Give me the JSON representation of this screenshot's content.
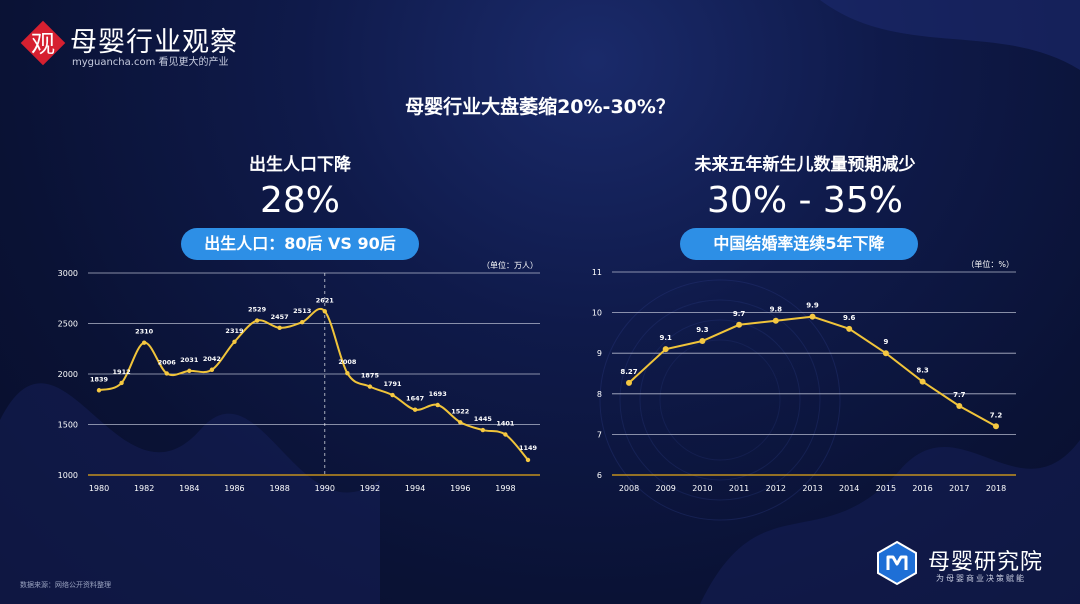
{
  "logo": {
    "mark": "观",
    "name": "母婴行业观察",
    "sub": "myguancha.com 看见更大的产业"
  },
  "headline": "母婴行业大盘萎缩20%-30%？",
  "left_panel": {
    "title": "出生人口下降",
    "big": "28%",
    "pill": "出生人口：80后 VS 90后"
  },
  "right_panel": {
    "title": "未来五年新生儿数量预期减少",
    "big": "30% - 35%",
    "pill": "中国结婚率连续5年下降"
  },
  "footer": {
    "source": "数据来源：网络公开资料整理"
  },
  "brand": {
    "name": "母婴研究院",
    "sub": "为母婴商业决策赋能"
  },
  "colors": {
    "line": "#f0c43a",
    "point": "#f5c842",
    "grid": "#d0d4e4",
    "axis": "#e6a817",
    "pill": "#2d8fe6"
  },
  "chart_data": [
    {
      "type": "line",
      "unit_label": "（单位：万人）",
      "x": [
        1980,
        1981,
        1982,
        1983,
        1984,
        1985,
        1986,
        1987,
        1988,
        1989,
        1990,
        1991,
        1992,
        1993,
        1994,
        1995,
        1996,
        1997,
        1998,
        1999
      ],
      "values": [
        1839,
        1912,
        2310,
        2006,
        2031,
        2042,
        2319,
        2529,
        2457,
        2513,
        2621,
        2008,
        1875,
        1791,
        1647,
        1693,
        1522,
        1445,
        1401,
        1149
      ],
      "point_labels": [
        "1839",
        "1912",
        "2310",
        "2006",
        "2031",
        "2042",
        "2319",
        "2529",
        "2457",
        "2513",
        "2621",
        "2008",
        "1875",
        "1791",
        "1647",
        "1693",
        "1522",
        "1445",
        "1401",
        "1149"
      ],
      "x_ticks": [
        "1980",
        "1982",
        "1984",
        "1986",
        "1988",
        "1990",
        "1992",
        "1994",
        "1996",
        "1998"
      ],
      "y_ticks": [
        "1000",
        "1500",
        "2000",
        "2500",
        "3000"
      ],
      "ylim": [
        1000,
        3000
      ],
      "divider_year": 1990,
      "grid": true
    },
    {
      "type": "line",
      "unit_label": "（单位：%）",
      "x": [
        2008,
        2009,
        2010,
        2011,
        2012,
        2013,
        2014,
        2015,
        2016,
        2017,
        2018
      ],
      "values": [
        8.27,
        9.1,
        9.3,
        9.7,
        9.8,
        9.9,
        9.6,
        9,
        8.3,
        7.7,
        7.2
      ],
      "point_labels": [
        "8.27",
        "9.1",
        "9.3",
        "9.7",
        "9.8",
        "9.9",
        "9.6",
        "9",
        "8.3",
        "7.7",
        "7.2"
      ],
      "x_ticks": [
        "2008",
        "2009",
        "2010",
        "2011",
        "2012",
        "2013",
        "2014",
        "2015",
        "2016",
        "2017",
        "2018"
      ],
      "y_ticks": [
        "6",
        "7",
        "8",
        "9",
        "10",
        "11"
      ],
      "ylim": [
        6,
        11
      ],
      "grid": true
    }
  ]
}
